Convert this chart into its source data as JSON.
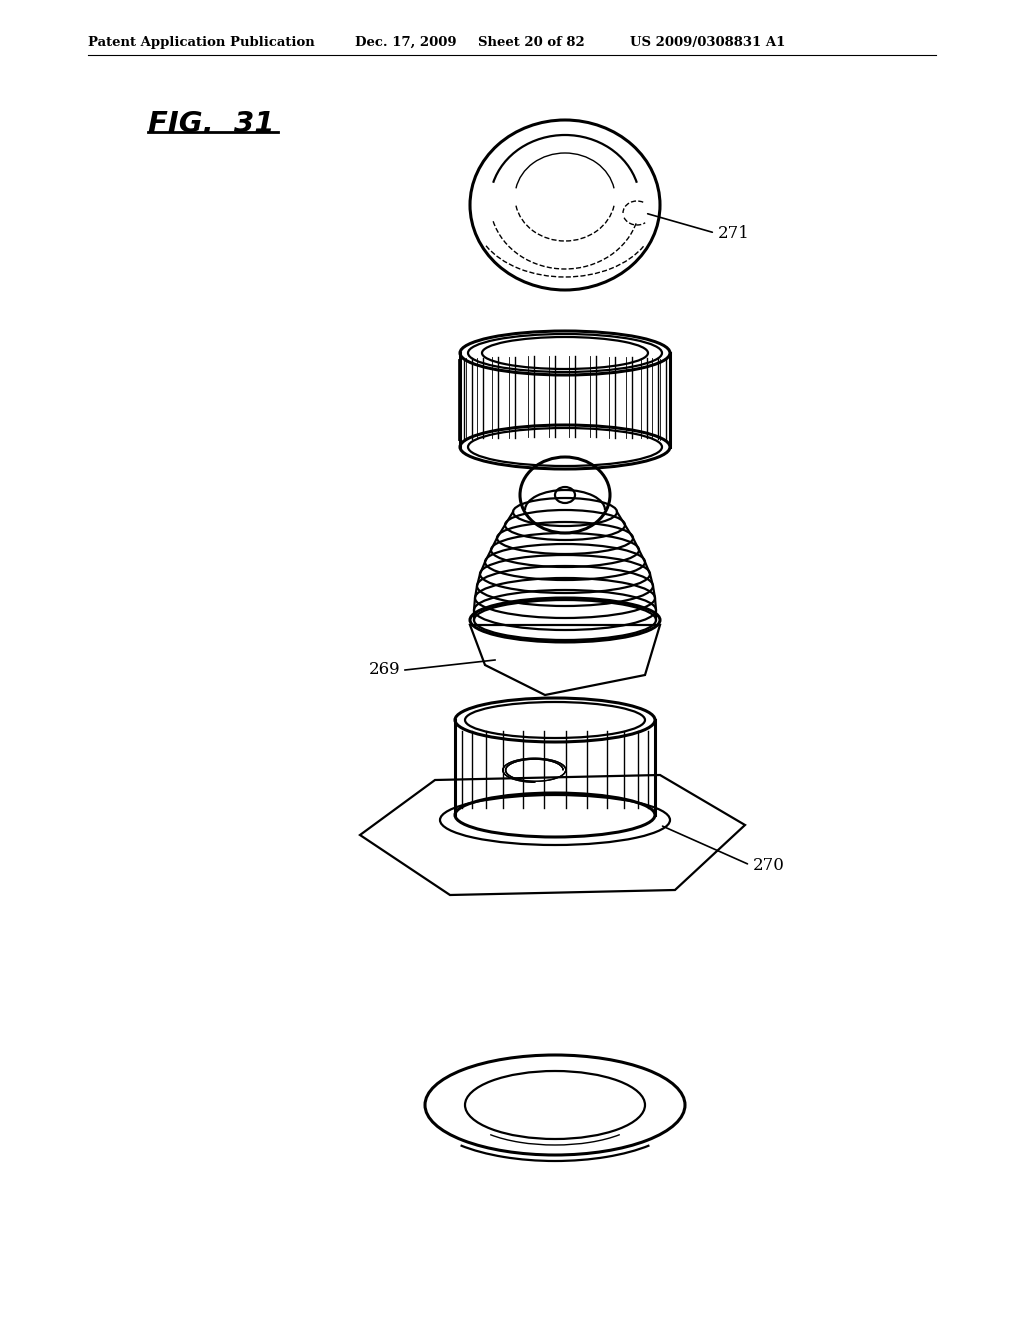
{
  "title_header": "Patent Application Publication",
  "date_header": "Dec. 17, 2009",
  "sheet_header": "Sheet 20 of 82",
  "patent_header": "US 2009/0308831 A1",
  "fig_label": "FIG.  31",
  "label_271": "271",
  "label_269": "269",
  "label_270": "270",
  "bg_color": "#ffffff",
  "line_color": "#000000"
}
